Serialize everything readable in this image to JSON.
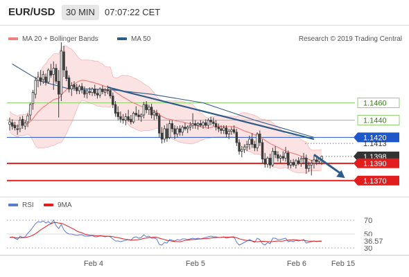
{
  "header": {
    "symbol": "EUR/USD",
    "timeframe": "30 MIN",
    "time": "07:07:22 CET"
  },
  "legend": {
    "bollinger": "MA 20 + Bollinger Bands",
    "ma50": "MA 50",
    "copyright": "Research © 2019 Trading Central"
  },
  "rsi_legend": {
    "rsi": "RSI",
    "ma": "9MA"
  },
  "colors": {
    "candle": "#3a3a3a",
    "ma20": "#f08080",
    "bollinger_fill": "#fbd9d9",
    "ma50": "#2e5c8a",
    "support": "#e11d1d",
    "pivot": "#1f56c8",
    "target": "#8fcf6e",
    "trend_arrow": "#2e5c8a",
    "rsi": "#5a78d4",
    "rsi_ma": "#e11d1d",
    "price_label": "#333333"
  },
  "chart_data": [
    {
      "type": "candlestick",
      "title": "EUR/USD",
      "x_tick_labels": [
        "Feb 4",
        "Feb 5",
        "Feb 6",
        "Feb 15"
      ],
      "ylim": [
        1.1353,
        1.1547
      ],
      "grid": false,
      "legend_position": "top-left",
      "indicators": [
        "MA 20 + Bollinger Bands",
        "MA 50"
      ],
      "levels": [
        {
          "value": 1.146,
          "label": "1.1460",
          "kind": "target"
        },
        {
          "value": 1.144,
          "label": "1.1440",
          "kind": "target"
        },
        {
          "value": 1.142,
          "label": "1.1420",
          "kind": "pivot"
        },
        {
          "value": 1.1413,
          "label": "1.1413",
          "kind": "marker"
        },
        {
          "value": 1.1398,
          "label": "1.1398",
          "kind": "last_price"
        },
        {
          "value": 1.139,
          "label": "1.1390",
          "kind": "support"
        },
        {
          "value": 1.137,
          "label": "1.1370",
          "kind": "support"
        }
      ],
      "ma50_line": [
        [
          1,
          1.1505
        ],
        [
          12,
          1.1485
        ],
        [
          22,
          1.1477
        ],
        [
          40,
          1.1475
        ],
        [
          55,
          1.147
        ],
        [
          75,
          1.146
        ],
        [
          95,
          1.144
        ],
        [
          118,
          1.142
        ]
      ],
      "trendline": [
        [
          38,
          1.1478
        ],
        [
          118,
          1.1418
        ]
      ],
      "forecast_arrow": [
        [
          118,
          1.14
        ],
        [
          130,
          1.1373
        ]
      ]
    },
    {
      "type": "line",
      "title": "RSI",
      "series": [
        {
          "name": "RSI",
          "values": []
        },
        {
          "name": "9MA",
          "values": []
        }
      ],
      "y_tick_labels": [
        "70",
        "50",
        "30"
      ],
      "ylim": [
        22,
        82
      ],
      "reference_lines": [
        70,
        30
      ],
      "current_value": "36.57"
    }
  ],
  "candles": [
    [
      1.1435,
      1.1443,
      1.1428,
      1.1438
    ],
    [
      1.1437,
      1.1441,
      1.1429,
      1.1433
    ],
    [
      1.1434,
      1.1438,
      1.1428,
      1.1431
    ],
    [
      1.143,
      1.1435,
      1.1423,
      1.1429
    ],
    [
      1.143,
      1.1444,
      1.1426,
      1.144
    ],
    [
      1.1441,
      1.1445,
      1.143,
      1.1434
    ],
    [
      1.1433,
      1.144,
      1.1429,
      1.1437
    ],
    [
      1.1438,
      1.1448,
      1.1432,
      1.1445
    ],
    [
      1.1446,
      1.146,
      1.144,
      1.1458
    ],
    [
      1.1459,
      1.1475,
      1.1452,
      1.1472
    ],
    [
      1.147,
      1.149,
      1.1465,
      1.1486
    ],
    [
      1.1486,
      1.1496,
      1.1478,
      1.149
    ],
    [
      1.1489,
      1.1498,
      1.148,
      1.1485
    ],
    [
      1.1487,
      1.1497,
      1.1482,
      1.1493
    ],
    [
      1.149,
      1.1494,
      1.148,
      1.1484
    ],
    [
      1.1484,
      1.15,
      1.1482,
      1.1498
    ],
    [
      1.1497,
      1.1505,
      1.1489,
      1.1492
    ],
    [
      1.1493,
      1.1508,
      1.1475,
      1.15
    ],
    [
      1.15,
      1.1505,
      1.1482,
      1.1485
    ],
    [
      1.1485,
      1.1498,
      1.1443,
      1.147
    ],
    [
      1.147,
      1.153,
      1.1462,
      1.152
    ],
    [
      1.1519,
      1.1526,
      1.149,
      1.1498
    ],
    [
      1.1497,
      1.1502,
      1.1485,
      1.1488
    ],
    [
      1.1489,
      1.1492,
      1.1472,
      1.1476
    ],
    [
      1.1476,
      1.1484,
      1.1468,
      1.148
    ],
    [
      1.1481,
      1.1485,
      1.1474,
      1.1478
    ],
    [
      1.1478,
      1.1482,
      1.147,
      1.1474
    ],
    [
      1.1474,
      1.1481,
      1.147,
      1.1479
    ],
    [
      1.1479,
      1.1483,
      1.1471,
      1.1475
    ],
    [
      1.1475,
      1.1479,
      1.1466,
      1.147
    ],
    [
      1.1471,
      1.1476,
      1.1465,
      1.1474
    ],
    [
      1.1473,
      1.1478,
      1.1469,
      1.1472
    ],
    [
      1.1472,
      1.1478,
      1.1468,
      1.1476
    ],
    [
      1.1476,
      1.1481,
      1.1468,
      1.1471
    ],
    [
      1.1471,
      1.1476,
      1.1465,
      1.1469
    ],
    [
      1.1469,
      1.1478,
      1.1466,
      1.1476
    ],
    [
      1.1476,
      1.148,
      1.147,
      1.1473
    ],
    [
      1.1472,
      1.1477,
      1.1468,
      1.1474
    ],
    [
      1.1475,
      1.148,
      1.147,
      1.1474
    ],
    [
      1.1474,
      1.1476,
      1.1465,
      1.1468
    ],
    [
      1.1468,
      1.1472,
      1.1454,
      1.1458
    ],
    [
      1.1458,
      1.1462,
      1.1444,
      1.1448
    ],
    [
      1.1449,
      1.1456,
      1.144,
      1.1444
    ],
    [
      1.1444,
      1.145,
      1.1437,
      1.1441
    ],
    [
      1.1441,
      1.1447,
      1.1436,
      1.144
    ],
    [
      1.144,
      1.1448,
      1.1434,
      1.1444
    ],
    [
      1.1444,
      1.1452,
      1.1438,
      1.144
    ],
    [
      1.1441,
      1.1446,
      1.1435,
      1.1438
    ],
    [
      1.1438,
      1.145,
      1.1436,
      1.1448
    ],
    [
      1.1448,
      1.1456,
      1.1444,
      1.1446
    ],
    [
      1.1446,
      1.1452,
      1.144,
      1.1444
    ],
    [
      1.1444,
      1.1448,
      1.1438,
      1.1446
    ],
    [
      1.1446,
      1.1461,
      1.1442,
      1.1458
    ],
    [
      1.1458,
      1.1462,
      1.1448,
      1.1452
    ],
    [
      1.1452,
      1.1458,
      1.1446,
      1.1455
    ],
    [
      1.1455,
      1.1459,
      1.1442,
      1.1446
    ],
    [
      1.1446,
      1.1452,
      1.144,
      1.1449
    ],
    [
      1.1448,
      1.1452,
      1.1441,
      1.1445
    ],
    [
      1.1445,
      1.1448,
      1.142,
      1.1425
    ],
    [
      1.1425,
      1.1432,
      1.1413,
      1.1418
    ],
    [
      1.1418,
      1.1434,
      1.1414,
      1.143
    ],
    [
      1.143,
      1.1436,
      1.1415,
      1.1419
    ],
    [
      1.142,
      1.144,
      1.1418,
      1.1436
    ],
    [
      1.1436,
      1.144,
      1.1426,
      1.143
    ],
    [
      1.143,
      1.1434,
      1.1418,
      1.1424
    ],
    [
      1.1424,
      1.1433,
      1.142,
      1.143
    ],
    [
      1.143,
      1.1434,
      1.1422,
      1.1426
    ],
    [
      1.1426,
      1.1434,
      1.1422,
      1.1432
    ],
    [
      1.1432,
      1.1437,
      1.1428,
      1.143
    ],
    [
      1.143,
      1.1434,
      1.1425,
      1.1432
    ],
    [
      1.1432,
      1.1438,
      1.1428,
      1.1434
    ],
    [
      1.1434,
      1.1448,
      1.143,
      1.1436
    ],
    [
      1.1436,
      1.144,
      1.143,
      1.1434
    ],
    [
      1.1434,
      1.1438,
      1.1429,
      1.1436
    ],
    [
      1.1436,
      1.144,
      1.1432,
      1.1434
    ],
    [
      1.1434,
      1.1439,
      1.143,
      1.1437
    ],
    [
      1.1437,
      1.1441,
      1.1432,
      1.1434
    ],
    [
      1.1434,
      1.1442,
      1.143,
      1.144
    ],
    [
      1.144,
      1.1444,
      1.1434,
      1.1438
    ],
    [
      1.1438,
      1.1443,
      1.1433,
      1.1436
    ],
    [
      1.1436,
      1.144,
      1.1428,
      1.1432
    ],
    [
      1.1432,
      1.1436,
      1.1426,
      1.143
    ],
    [
      1.143,
      1.1434,
      1.1424,
      1.1428
    ],
    [
      1.1428,
      1.1434,
      1.1424,
      1.1431
    ],
    [
      1.1431,
      1.1434,
      1.142,
      1.1424
    ],
    [
      1.1424,
      1.143,
      1.1418,
      1.1427
    ],
    [
      1.1427,
      1.1432,
      1.1423,
      1.1429
    ],
    [
      1.1429,
      1.1434,
      1.1424,
      1.1426
    ],
    [
      1.1426,
      1.143,
      1.141,
      1.1414
    ],
    [
      1.1414,
      1.1418,
      1.14,
      1.1404
    ],
    [
      1.1404,
      1.141,
      1.1397,
      1.1406
    ],
    [
      1.1406,
      1.1412,
      1.1402,
      1.1409
    ],
    [
      1.1409,
      1.1416,
      1.1404,
      1.1412
    ],
    [
      1.1412,
      1.1422,
      1.1406,
      1.1418
    ],
    [
      1.1418,
      1.1425,
      1.1408,
      1.1412
    ],
    [
      1.1412,
      1.1416,
      1.1404,
      1.1408
    ],
    [
      1.1408,
      1.1426,
      1.1404,
      1.1424
    ],
    [
      1.1424,
      1.1428,
      1.141,
      1.1414
    ],
    [
      1.1414,
      1.1418,
      1.139,
      1.1395
    ],
    [
      1.1395,
      1.1402,
      1.1385,
      1.1389
    ],
    [
      1.1389,
      1.1398,
      1.1385,
      1.1396
    ],
    [
      1.1396,
      1.1401,
      1.1384,
      1.1388
    ],
    [
      1.1388,
      1.1408,
      1.1386,
      1.1404
    ],
    [
      1.1404,
      1.141,
      1.1396,
      1.14
    ],
    [
      1.14,
      1.1404,
      1.1392,
      1.1396
    ],
    [
      1.1396,
      1.14,
      1.139,
      1.1398
    ],
    [
      1.1398,
      1.1404,
      1.1393,
      1.1396
    ],
    [
      1.1396,
      1.1409,
      1.1392,
      1.1402
    ],
    [
      1.1402,
      1.1405,
      1.1384,
      1.1388
    ],
    [
      1.1388,
      1.1394,
      1.1384,
      1.1391
    ],
    [
      1.1391,
      1.1395,
      1.1386,
      1.1388
    ],
    [
      1.1388,
      1.1395,
      1.1384,
      1.1393
    ],
    [
      1.1393,
      1.1397,
      1.1388,
      1.139
    ],
    [
      1.139,
      1.1398,
      1.1386,
      1.1395
    ],
    [
      1.1395,
      1.1402,
      1.1389,
      1.1396
    ],
    [
      1.1396,
      1.14,
      1.1378,
      1.1384
    ],
    [
      1.1384,
      1.1392,
      1.138,
      1.1388
    ],
    [
      1.1388,
      1.1394,
      1.1376,
      1.139
    ],
    [
      1.139,
      1.14,
      1.1384,
      1.1394
    ],
    [
      1.1394,
      1.1398,
      1.1388,
      1.1392
    ],
    [
      1.1392,
      1.1397,
      1.1389,
      1.1395
    ],
    [
      1.1395,
      1.1399,
      1.1388,
      1.1398
    ]
  ],
  "rsi": [
    45,
    46,
    44,
    42,
    47,
    45,
    46,
    51,
    55,
    60,
    65,
    68,
    67,
    69,
    66,
    68,
    65,
    70,
    62,
    58,
    64,
    56,
    52,
    50,
    50,
    49,
    48,
    49,
    49,
    47,
    47,
    47,
    48,
    46,
    46,
    48,
    47,
    46,
    47,
    46,
    43,
    40,
    40,
    39,
    40,
    41,
    42,
    41,
    45,
    46,
    44,
    45,
    49,
    46,
    47,
    44,
    44,
    43,
    35,
    34,
    38,
    37,
    42,
    41,
    40,
    42,
    41,
    43,
    43,
    42,
    43,
    44,
    43,
    44,
    43,
    44,
    45,
    46,
    47,
    46,
    46,
    45,
    45,
    46,
    44,
    45,
    46,
    46,
    38,
    34,
    36,
    38,
    40,
    42,
    40,
    38,
    44,
    42,
    36,
    34,
    38,
    36,
    44,
    44,
    42,
    42,
    43,
    44,
    39,
    40,
    39,
    41,
    40,
    41,
    42,
    37,
    38,
    39,
    40,
    39,
    40,
    40
  ]
}
